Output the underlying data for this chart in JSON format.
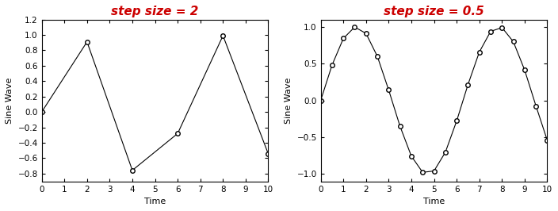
{
  "title1": "step size = 2",
  "title2": "step size = 0.5",
  "step1": 2,
  "step2": 0.5,
  "xlabel": "Time",
  "ylabel": "Sine Wave",
  "xlim": [
    0,
    10
  ],
  "ylim1": [
    -0.9,
    1.2
  ],
  "ylim2": [
    -1.1,
    1.1
  ],
  "yticks1": [
    -0.8,
    -0.6,
    -0.4,
    -0.2,
    0,
    0.2,
    0.4,
    0.6,
    0.8,
    1.0,
    1.2
  ],
  "yticks2": [
    -1.0,
    -0.5,
    0,
    0.5,
    1.0
  ],
  "title_color": "#cc0000",
  "title_fontsize": 11,
  "label_fontsize": 8,
  "tick_fontsize": 7.5,
  "line_color": "black",
  "marker": "o",
  "marker_facecolor": "white",
  "marker_edgecolor": "black",
  "marker_size": 4,
  "linewidth": 0.8
}
